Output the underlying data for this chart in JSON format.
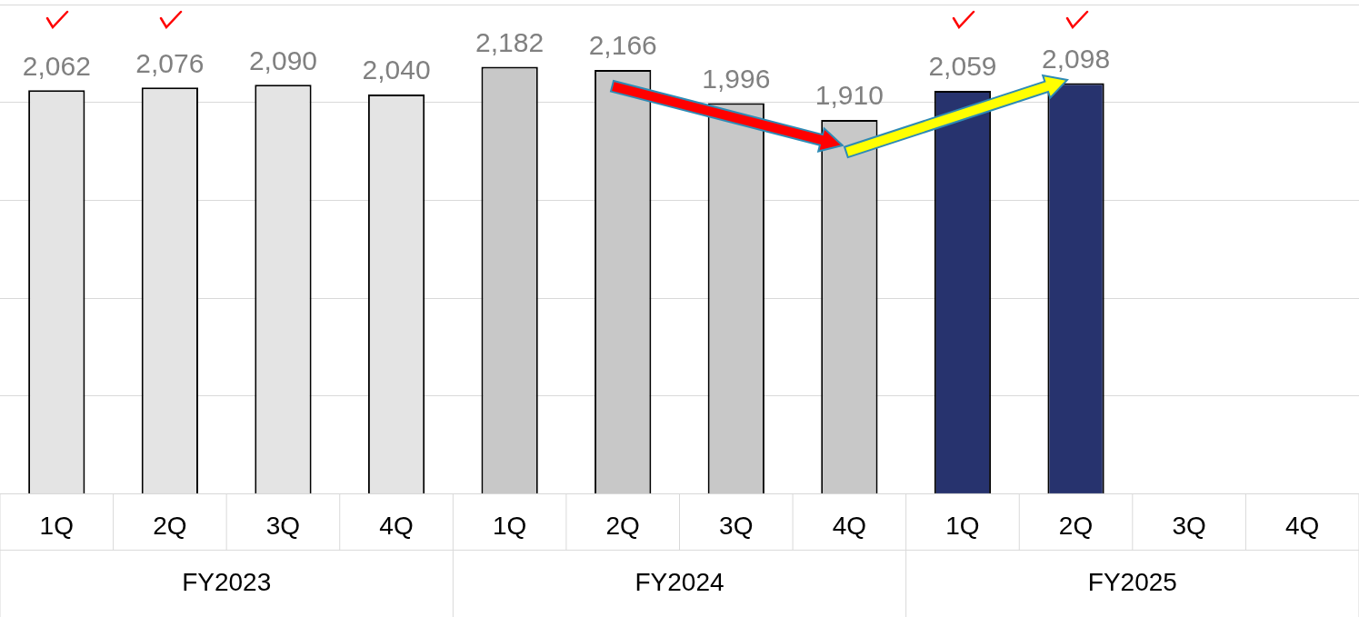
{
  "chart_data": {
    "type": "bar",
    "categories": [
      "1Q",
      "2Q",
      "3Q",
      "4Q",
      "1Q",
      "2Q",
      "3Q",
      "4Q",
      "1Q",
      "2Q",
      "3Q",
      "4Q"
    ],
    "values": [
      2062,
      2076,
      2090,
      2040,
      2182,
      2166,
      1996,
      1910,
      2059,
      2098,
      null,
      null
    ],
    "colors": [
      "#e4e4e4",
      "#e4e4e4",
      "#e4e4e4",
      "#e4e4e4",
      "#c8c8c8",
      "#c8c8c8",
      "#c8c8c8",
      "#c8c8c8",
      "#27336e",
      "#27336e",
      "#27336e",
      "#27336e"
    ],
    "value_labels": [
      "2,062",
      "2,076",
      "2,090",
      "2,040",
      "2,182",
      "2,166",
      "1,996",
      "1,910",
      "2,059",
      "2,098",
      null,
      null
    ],
    "annotations": [
      "FY2023",
      "FY2024",
      "FY2025"
    ],
    "ylim": [
      0,
      2500
    ],
    "yticks": [
      {
        "value": 0,
        "label": null
      },
      {
        "value": 500,
        "label": null
      },
      {
        "value": 1000,
        "label": null
      },
      {
        "value": 1500,
        "label": null
      },
      {
        "value": 2000,
        "label": null
      },
      {
        "value": 2500,
        "label": null
      }
    ],
    "grid": "y",
    "tick_labels": "x",
    "legend": false
  }
}
